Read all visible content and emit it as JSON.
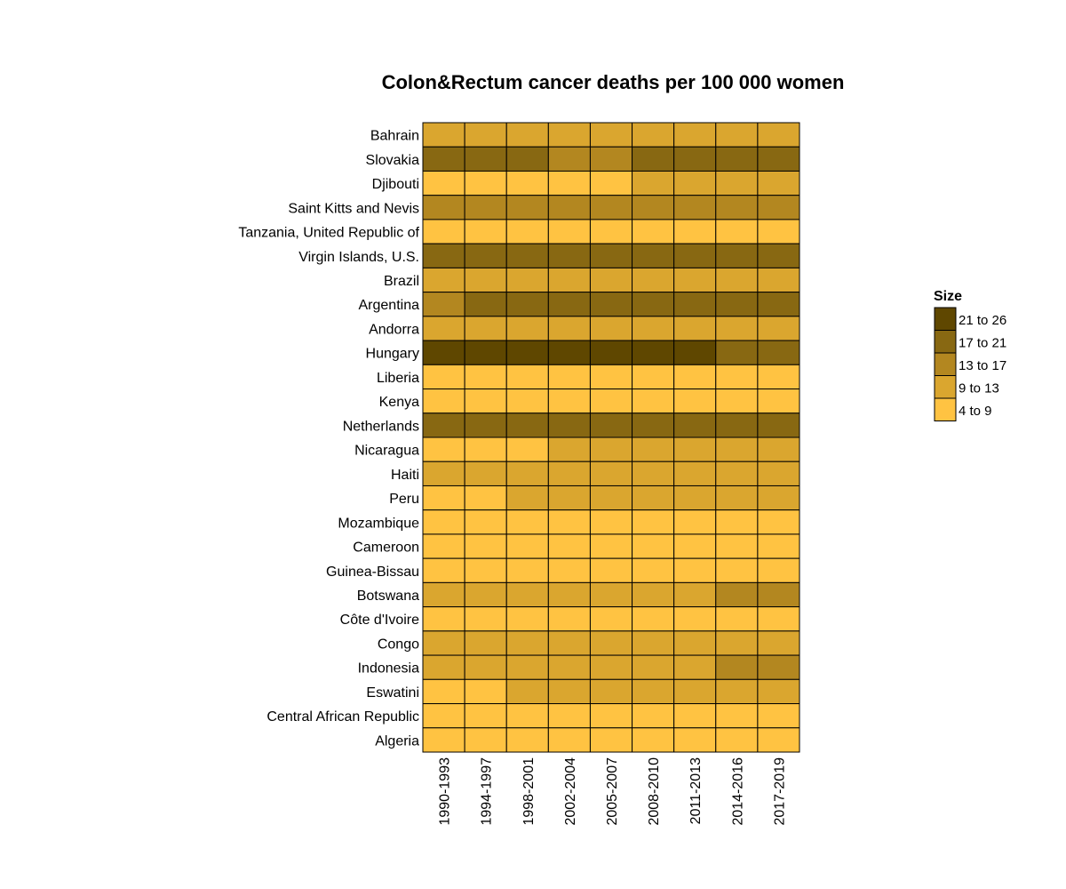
{
  "chart_data": {
    "type": "heatmap",
    "title": "Colon&Rectum cancer deaths per 100 000 women",
    "xlabel": "",
    "ylabel": "",
    "x": [
      "1990-1993",
      "1994-1997",
      "1998-2001",
      "2002-2004",
      "2005-2007",
      "2008-2010",
      "2011-2013",
      "2014-2016",
      "2017-2019"
    ],
    "y": [
      "Bahrain",
      "Slovakia",
      "Djibouti",
      "Saint Kitts and Nevis",
      "Tanzania, United Republic of",
      "Virgin Islands, U.S.",
      "Brazil",
      "Argentina",
      "Andorra",
      "Hungary",
      "Liberia",
      "Kenya",
      "Netherlands",
      "Nicaragua",
      "Haiti",
      "Peru",
      "Mozambique",
      "Cameroon",
      "Guinea-Bissau",
      "Botswana",
      "Côte d'Ivoire",
      "Congo",
      "Indonesia",
      "Eswatini",
      "Central African Republic",
      "Algeria"
    ],
    "values": [
      [
        "9 to 13",
        "9 to 13",
        "9 to 13",
        "9 to 13",
        "9 to 13",
        "9 to 13",
        "9 to 13",
        "9 to 13",
        "9 to 13"
      ],
      [
        "17 to 21",
        "17 to 21",
        "17 to 21",
        "13 to 17",
        "13 to 17",
        "17 to 21",
        "17 to 21",
        "17 to 21",
        "17 to 21"
      ],
      [
        "4 to 9",
        "4 to 9",
        "4 to 9",
        "4 to 9",
        "4 to 9",
        "9 to 13",
        "9 to 13",
        "9 to 13",
        "9 to 13"
      ],
      [
        "13 to 17",
        "13 to 17",
        "13 to 17",
        "13 to 17",
        "13 to 17",
        "13 to 17",
        "13 to 17",
        "13 to 17",
        "13 to 17"
      ],
      [
        "4 to 9",
        "4 to 9",
        "4 to 9",
        "4 to 9",
        "4 to 9",
        "4 to 9",
        "4 to 9",
        "4 to 9",
        "4 to 9"
      ],
      [
        "17 to 21",
        "17 to 21",
        "17 to 21",
        "17 to 21",
        "17 to 21",
        "17 to 21",
        "17 to 21",
        "17 to 21",
        "17 to 21"
      ],
      [
        "9 to 13",
        "9 to 13",
        "9 to 13",
        "9 to 13",
        "9 to 13",
        "9 to 13",
        "9 to 13",
        "9 to 13",
        "9 to 13"
      ],
      [
        "13 to 17",
        "17 to 21",
        "17 to 21",
        "17 to 21",
        "17 to 21",
        "17 to 21",
        "17 to 21",
        "17 to 21",
        "17 to 21"
      ],
      [
        "9 to 13",
        "9 to 13",
        "9 to 13",
        "9 to 13",
        "9 to 13",
        "9 to 13",
        "9 to 13",
        "9 to 13",
        "9 to 13"
      ],
      [
        "21 to 26",
        "21 to 26",
        "21 to 26",
        "21 to 26",
        "21 to 26",
        "21 to 26",
        "21 to 26",
        "17 to 21",
        "17 to 21"
      ],
      [
        "4 to 9",
        "4 to 9",
        "4 to 9",
        "4 to 9",
        "4 to 9",
        "4 to 9",
        "4 to 9",
        "4 to 9",
        "4 to 9"
      ],
      [
        "4 to 9",
        "4 to 9",
        "4 to 9",
        "4 to 9",
        "4 to 9",
        "4 to 9",
        "4 to 9",
        "4 to 9",
        "4 to 9"
      ],
      [
        "17 to 21",
        "17 to 21",
        "17 to 21",
        "17 to 21",
        "17 to 21",
        "17 to 21",
        "17 to 21",
        "17 to 21",
        "17 to 21"
      ],
      [
        "4 to 9",
        "4 to 9",
        "4 to 9",
        "9 to 13",
        "9 to 13",
        "9 to 13",
        "9 to 13",
        "9 to 13",
        "9 to 13"
      ],
      [
        "9 to 13",
        "9 to 13",
        "9 to 13",
        "9 to 13",
        "9 to 13",
        "9 to 13",
        "9 to 13",
        "9 to 13",
        "9 to 13"
      ],
      [
        "4 to 9",
        "4 to 9",
        "9 to 13",
        "9 to 13",
        "9 to 13",
        "9 to 13",
        "9 to 13",
        "9 to 13",
        "9 to 13"
      ],
      [
        "4 to 9",
        "4 to 9",
        "4 to 9",
        "4 to 9",
        "4 to 9",
        "4 to 9",
        "4 to 9",
        "4 to 9",
        "4 to 9"
      ],
      [
        "4 to 9",
        "4 to 9",
        "4 to 9",
        "4 to 9",
        "4 to 9",
        "4 to 9",
        "4 to 9",
        "4 to 9",
        "4 to 9"
      ],
      [
        "4 to 9",
        "4 to 9",
        "4 to 9",
        "4 to 9",
        "4 to 9",
        "4 to 9",
        "4 to 9",
        "4 to 9",
        "4 to 9"
      ],
      [
        "9 to 13",
        "9 to 13",
        "9 to 13",
        "9 to 13",
        "9 to 13",
        "9 to 13",
        "9 to 13",
        "13 to 17",
        "13 to 17"
      ],
      [
        "4 to 9",
        "4 to 9",
        "4 to 9",
        "4 to 9",
        "4 to 9",
        "4 to 9",
        "4 to 9",
        "4 to 9",
        "4 to 9"
      ],
      [
        "9 to 13",
        "9 to 13",
        "9 to 13",
        "9 to 13",
        "9 to 13",
        "9 to 13",
        "9 to 13",
        "9 to 13",
        "9 to 13"
      ],
      [
        "9 to 13",
        "9 to 13",
        "9 to 13",
        "9 to 13",
        "9 to 13",
        "9 to 13",
        "9 to 13",
        "13 to 17",
        "13 to 17"
      ],
      [
        "4 to 9",
        "4 to 9",
        "9 to 13",
        "9 to 13",
        "9 to 13",
        "9 to 13",
        "9 to 13",
        "9 to 13",
        "9 to 13"
      ],
      [
        "4 to 9",
        "4 to 9",
        "4 to 9",
        "4 to 9",
        "4 to 9",
        "4 to 9",
        "4 to 9",
        "4 to 9",
        "4 to 9"
      ],
      [
        "4 to 9",
        "4 to 9",
        "4 to 9",
        "4 to 9",
        "4 to 9",
        "4 to 9",
        "4 to 9",
        "4 to 9",
        "4 to 9"
      ]
    ],
    "legend": {
      "title": "Size",
      "placement": "right",
      "entries": [
        {
          "label": "21 to 26",
          "color": "#5f4700"
        },
        {
          "label": "17 to 21",
          "color": "#886812"
        },
        {
          "label": "13 to 17",
          "color": "#b38720"
        },
        {
          "label": "9 to 13",
          "color": "#daa62f"
        },
        {
          "label": "4 to 9",
          "color": "#ffc342"
        }
      ]
    },
    "grid": false
  }
}
